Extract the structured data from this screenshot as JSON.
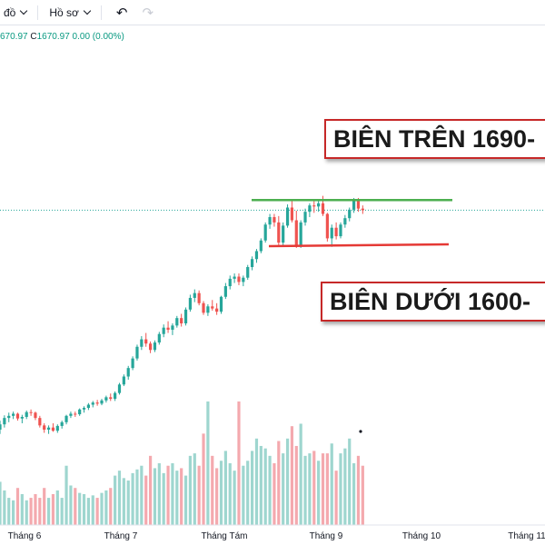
{
  "toolbar": {
    "chart_type_label": "đồ",
    "profile_label": "Hồ sơ",
    "undo_icon": "undo-icon",
    "redo_icon": "redo-icon"
  },
  "ohlc": {
    "partial_value": "670.97",
    "close_label": "C",
    "close_value": "1670.97",
    "change": "0.00 (0.00%)"
  },
  "annotations": {
    "upper_label": "BIÊN TRÊN 1690-",
    "lower_label": "BIÊN DƯỚI 1600-"
  },
  "colors": {
    "up": "#26a69a",
    "down": "#ef5350",
    "vol_up": "#9ed6cf",
    "vol_down": "#f4a9ae",
    "resistance": "#4caf50",
    "support": "#e53935"
  },
  "chart_data": {
    "type": "candlestick",
    "x_tick_labels": [
      "Tháng 6",
      "Tháng 7",
      "Tháng Tám",
      "Tháng 9",
      "Tháng 10",
      "Tháng 11"
    ],
    "last_price": 1670.97,
    "resistance_level": 1690,
    "support_level": 1600,
    "ohlc": [
      [
        1258,
        1275,
        1250,
        1268
      ],
      [
        1268,
        1285,
        1262,
        1280
      ],
      [
        1280,
        1290,
        1272,
        1284
      ],
      [
        1284,
        1292,
        1278,
        1288
      ],
      [
        1288,
        1290,
        1275,
        1279
      ],
      [
        1279,
        1286,
        1270,
        1282
      ],
      [
        1282,
        1294,
        1278,
        1291
      ],
      [
        1291,
        1296,
        1284,
        1290
      ],
      [
        1290,
        1292,
        1276,
        1280
      ],
      [
        1280,
        1284,
        1262,
        1266
      ],
      [
        1266,
        1270,
        1252,
        1258
      ],
      [
        1258,
        1266,
        1250,
        1262
      ],
      [
        1262,
        1270,
        1254,
        1256
      ],
      [
        1256,
        1268,
        1252,
        1265
      ],
      [
        1265,
        1275,
        1260,
        1272
      ],
      [
        1272,
        1286,
        1268,
        1284
      ],
      [
        1284,
        1292,
        1280,
        1288
      ],
      [
        1288,
        1292,
        1282,
        1287
      ],
      [
        1287,
        1298,
        1284,
        1296
      ],
      [
        1296,
        1302,
        1290,
        1299
      ],
      [
        1299,
        1308,
        1295,
        1305
      ],
      [
        1305,
        1312,
        1300,
        1309
      ],
      [
        1309,
        1314,
        1303,
        1307
      ],
      [
        1307,
        1316,
        1304,
        1313
      ],
      [
        1313,
        1322,
        1309,
        1319
      ],
      [
        1319,
        1326,
        1312,
        1316
      ],
      [
        1316,
        1330,
        1312,
        1327
      ],
      [
        1327,
        1346,
        1324,
        1343
      ],
      [
        1343,
        1362,
        1340,
        1358
      ],
      [
        1358,
        1378,
        1352,
        1374
      ],
      [
        1374,
        1396,
        1370,
        1392
      ],
      [
        1392,
        1418,
        1388,
        1414
      ],
      [
        1414,
        1434,
        1408,
        1428
      ],
      [
        1428,
        1440,
        1414,
        1420
      ],
      [
        1420,
        1424,
        1402,
        1408
      ],
      [
        1408,
        1426,
        1404,
        1422
      ],
      [
        1422,
        1442,
        1418,
        1438
      ],
      [
        1438,
        1456,
        1432,
        1450
      ],
      [
        1450,
        1462,
        1440,
        1446
      ],
      [
        1446,
        1458,
        1436,
        1454
      ],
      [
        1454,
        1472,
        1450,
        1468
      ],
      [
        1468,
        1476,
        1452,
        1458
      ],
      [
        1458,
        1488,
        1454,
        1484
      ],
      [
        1484,
        1512,
        1480,
        1506
      ],
      [
        1506,
        1522,
        1498,
        1515
      ],
      [
        1515,
        1520,
        1492,
        1496
      ],
      [
        1496,
        1500,
        1474,
        1478
      ],
      [
        1478,
        1494,
        1472,
        1490
      ],
      [
        1490,
        1502,
        1482,
        1486
      ],
      [
        1486,
        1496,
        1474,
        1480
      ],
      [
        1480,
        1510,
        1476,
        1508
      ],
      [
        1508,
        1534,
        1504,
        1528
      ],
      [
        1528,
        1548,
        1522,
        1542
      ],
      [
        1542,
        1552,
        1534,
        1546
      ],
      [
        1546,
        1552,
        1530,
        1536
      ],
      [
        1536,
        1548,
        1528,
        1544
      ],
      [
        1544,
        1568,
        1540,
        1564
      ],
      [
        1564,
        1584,
        1558,
        1579
      ],
      [
        1579,
        1598,
        1572,
        1594
      ],
      [
        1594,
        1618,
        1590,
        1614
      ],
      [
        1614,
        1648,
        1610,
        1644
      ],
      [
        1644,
        1664,
        1636,
        1658
      ],
      [
        1658,
        1664,
        1640,
        1648
      ],
      [
        1648,
        1660,
        1602,
        1610
      ],
      [
        1610,
        1648,
        1604,
        1642
      ],
      [
        1642,
        1682,
        1638,
        1676
      ],
      [
        1676,
        1688,
        1648,
        1652
      ],
      [
        1652,
        1670,
        1600,
        1604
      ],
      [
        1604,
        1652,
        1600,
        1648
      ],
      [
        1648,
        1674,
        1642,
        1668
      ],
      [
        1668,
        1684,
        1658,
        1680
      ],
      [
        1680,
        1692,
        1666,
        1678
      ],
      [
        1678,
        1688,
        1668,
        1684
      ],
      [
        1684,
        1698,
        1660,
        1664
      ],
      [
        1664,
        1666,
        1612,
        1618
      ],
      [
        1618,
        1644,
        1602,
        1638
      ],
      [
        1638,
        1648,
        1616,
        1622
      ],
      [
        1622,
        1648,
        1618,
        1644
      ],
      [
        1644,
        1662,
        1638,
        1656
      ],
      [
        1656,
        1676,
        1650,
        1672
      ],
      [
        1672,
        1694,
        1666,
        1688
      ],
      [
        1688,
        1694,
        1668,
        1674
      ],
      [
        1674,
        1680,
        1664,
        1671
      ]
    ],
    "volume": [
      0.35,
      0.28,
      0.22,
      0.2,
      0.3,
      0.25,
      0.2,
      0.22,
      0.25,
      0.22,
      0.3,
      0.22,
      0.25,
      0.28,
      0.22,
      0.48,
      0.32,
      0.3,
      0.26,
      0.25,
      0.22,
      0.24,
      0.22,
      0.26,
      0.28,
      0.3,
      0.4,
      0.44,
      0.38,
      0.36,
      0.42,
      0.45,
      0.48,
      0.4,
      0.56,
      0.46,
      0.5,
      0.42,
      0.48,
      0.5,
      0.44,
      0.46,
      0.4,
      0.56,
      0.58,
      0.48,
      0.74,
      1.0,
      0.56,
      0.46,
      0.52,
      0.6,
      0.5,
      0.44,
      1.0,
      0.48,
      0.52,
      0.6,
      0.7,
      0.64,
      0.62,
      0.56,
      0.5,
      0.68,
      0.58,
      0.7,
      0.8,
      0.64,
      0.82,
      0.56,
      0.58,
      0.6,
      0.52,
      0.58,
      0.58,
      0.66,
      0.44,
      0.58,
      0.62,
      0.7,
      0.5,
      0.56,
      0.48
    ]
  }
}
